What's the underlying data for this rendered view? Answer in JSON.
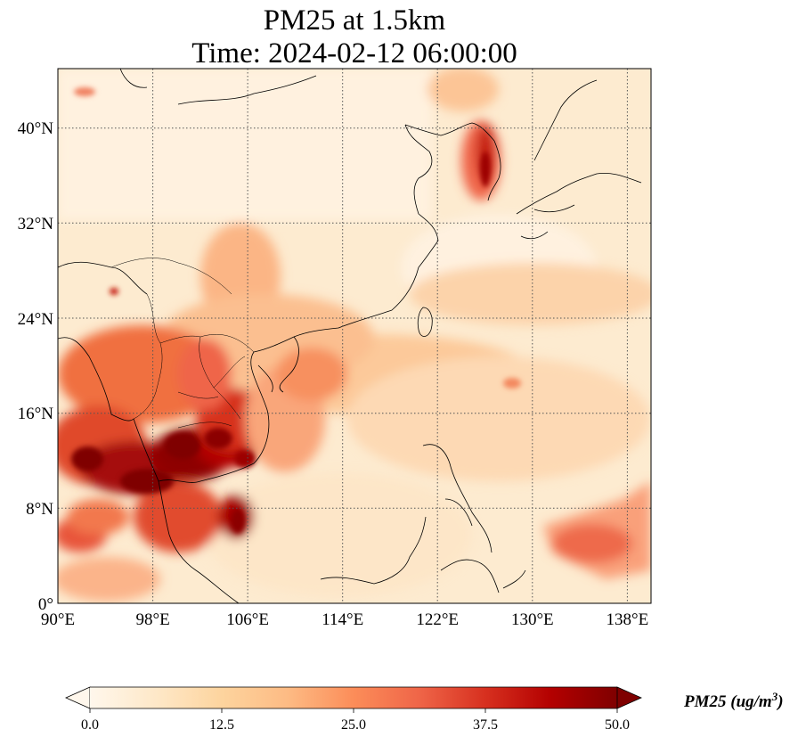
{
  "title": {
    "line1": "PM25 at 1.5km",
    "line2": "Time: 2024-02-12 06:00:00"
  },
  "map": {
    "extent_lon": [
      90,
      140
    ],
    "extent_lat": [
      0,
      45
    ],
    "lon_ticks": [
      "90°E",
      "98°E",
      "106°E",
      "114°E",
      "122°E",
      "130°E",
      "138°E"
    ],
    "lat_ticks": [
      "0°",
      "8°N",
      "16°N",
      "24°N",
      "32°N",
      "40°N"
    ],
    "gridlines": "dotted",
    "colormap": "OrRd"
  },
  "colorbar": {
    "label": "PM25 (ug/m",
    "label_superscript": "3",
    "label_close": ")",
    "ticks": [
      "0.0",
      "12.5",
      "25.0",
      "37.5",
      "50.0"
    ],
    "range": [
      0,
      50
    ],
    "extend": "both",
    "colors": [
      "#fff7ec",
      "#fee8c8",
      "#fdd49e",
      "#fdbb84",
      "#fc8d59",
      "#ef6548",
      "#d7301f",
      "#b30000",
      "#7f0000"
    ]
  }
}
